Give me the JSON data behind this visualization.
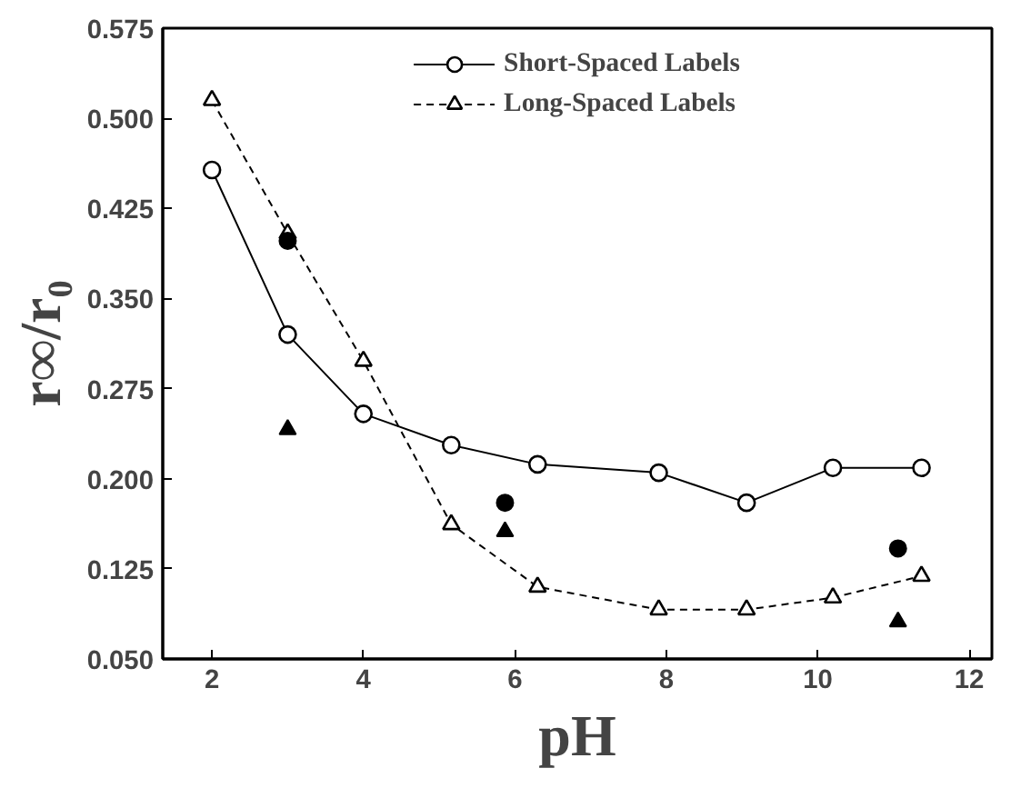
{
  "chart_data": {
    "type": "scatter",
    "xlabel": "pH",
    "ylabel": "r∞/r₀",
    "xlim": [
      1.35,
      12.3
    ],
    "xticks": [
      2,
      4,
      6,
      8,
      10,
      12
    ],
    "ylim": [
      0.05,
      0.575
    ],
    "yticks": [
      {
        "value": 0.05,
        "label": "0.050"
      },
      {
        "value": 0.125,
        "label": "0.125"
      },
      {
        "value": 0.2,
        "label": "0.200"
      },
      {
        "value": 0.275,
        "label": "0.275"
      },
      {
        "value": 0.35,
        "label": "0.350"
      },
      {
        "value": 0.425,
        "label": "0.425"
      },
      {
        "value": 0.5,
        "label": "0.500"
      },
      {
        "value": 0.575,
        "label": "0.575"
      }
    ],
    "grid": false,
    "legend": "top",
    "series": [
      {
        "name": "Short-Spaced Labels",
        "type": "line",
        "marker": "circle",
        "line_style": "solid",
        "color": "#000000",
        "x": [
          2,
          3,
          4,
          5.16,
          6.3,
          7.9,
          9.06,
          10.2,
          11.37
        ],
        "values": [
          0.457,
          0.32,
          0.254,
          0.228,
          0.212,
          0.205,
          0.18,
          0.209,
          0.209
        ]
      },
      {
        "name": "Long-Spaced Labels",
        "type": "line",
        "marker": "triangle",
        "line_style": "dashed",
        "color": "#000000",
        "x": [
          2,
          3,
          4,
          5.16,
          6.3,
          7.9,
          9.06,
          10.2,
          11.37
        ],
        "values": [
          0.515,
          0.404,
          0.298,
          0.162,
          0.11,
          0.091,
          0.091,
          0.101,
          0.119
        ]
      },
      {
        "marker": "circle",
        "color": "#000000",
        "x": [
          3,
          5.87,
          11.06
        ],
        "values": [
          0.398,
          0.18,
          0.142
        ]
      },
      {
        "marker": "triangle",
        "color": "#000000",
        "x": [
          3,
          5.87,
          11.06
        ],
        "values": [
          0.241,
          0.156,
          0.081
        ]
      }
    ]
  }
}
